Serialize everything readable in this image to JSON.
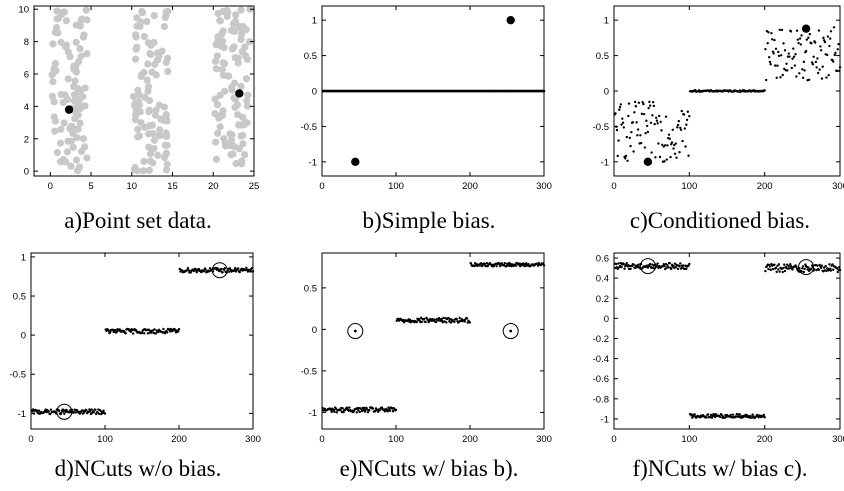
{
  "figure": {
    "captions": [
      "a)Point set data.",
      "b)Simple bias.",
      "c)Conditioned bias.",
      "d)NCuts w/o bias.",
      "e)NCuts w/ bias b).",
      "f)NCuts w/ bias c)."
    ]
  },
  "colors": {
    "point_gray": "#c8c8c8",
    "marker": "#000000",
    "axis": "#000000"
  },
  "chart_data": [
    {
      "id": "a",
      "type": "scatter",
      "title": "",
      "xlabel": "",
      "ylabel": "",
      "xlim": [
        -2,
        25
      ],
      "ylim": [
        -0.3,
        10.2
      ],
      "xticks": [
        0,
        5,
        10,
        15,
        20,
        25
      ],
      "yticks": [
        0,
        2,
        4,
        6,
        8,
        10
      ],
      "clusters": [
        {
          "x_range": [
            0.2,
            4.5
          ],
          "y_range": [
            0,
            10
          ],
          "count": 100,
          "color": "#c8c8c8"
        },
        {
          "x_range": [
            10.2,
            14.5
          ],
          "y_range": [
            0,
            10
          ],
          "count": 100,
          "color": "#c8c8c8"
        },
        {
          "x_range": [
            20.2,
            24.5
          ],
          "y_range": [
            0,
            10
          ],
          "count": 100,
          "color": "#c8c8c8"
        }
      ],
      "highlights": [
        {
          "x": 2.3,
          "y": 3.8
        },
        {
          "x": 23.2,
          "y": 4.8
        }
      ]
    },
    {
      "id": "b",
      "type": "scatter",
      "title": "",
      "xlabel": "",
      "ylabel": "",
      "xlim": [
        0,
        300
      ],
      "ylim": [
        -1.2,
        1.2
      ],
      "xticks": [
        0,
        100,
        200,
        300
      ],
      "yticks": [
        -1,
        -0.5,
        0,
        0.5,
        1
      ],
      "segments": [
        {
          "x_range": [
            1,
            300
          ],
          "y_center": 0,
          "spread": 0.0
        }
      ],
      "highlights": [
        {
          "x": 45,
          "y": -1
        },
        {
          "x": 255,
          "y": 1
        }
      ]
    },
    {
      "id": "c",
      "type": "scatter",
      "title": "",
      "xlabel": "",
      "ylabel": "",
      "xlim": [
        0,
        300
      ],
      "ylim": [
        -1.2,
        1.2
      ],
      "xticks": [
        0,
        100,
        200,
        300
      ],
      "yticks": [
        -1,
        -0.5,
        0,
        0.5,
        1
      ],
      "segments": [
        {
          "x_range": [
            1,
            100
          ],
          "y_min": -1.0,
          "y_max": -0.15
        },
        {
          "x_range": [
            101,
            200
          ],
          "y_center": 0,
          "spread": 0.01
        },
        {
          "x_range": [
            201,
            300
          ],
          "y_min": 0.15,
          "y_max": 0.9
        }
      ],
      "highlights": [
        {
          "x": 45,
          "y": -1
        },
        {
          "x": 255,
          "y": 0.88
        }
      ]
    },
    {
      "id": "d",
      "type": "scatter",
      "title": "",
      "xlabel": "",
      "ylabel": "",
      "xlim": [
        0,
        300
      ],
      "ylim": [
        -1.2,
        1.05
      ],
      "xticks": [
        0,
        100,
        200,
        300
      ],
      "yticks": [
        -1,
        -0.5,
        0,
        0.5,
        1
      ],
      "segments": [
        {
          "x_range": [
            1,
            100
          ],
          "y_center": -0.98,
          "spread": 0.03
        },
        {
          "x_range": [
            101,
            200
          ],
          "y_center": 0.05,
          "spread": 0.03
        },
        {
          "x_range": [
            201,
            300
          ],
          "y_center": 0.83,
          "spread": 0.03
        }
      ],
      "circled": [
        {
          "x": 45,
          "y": -0.98
        },
        {
          "x": 255,
          "y": 0.83
        }
      ]
    },
    {
      "id": "e",
      "type": "scatter",
      "title": "",
      "xlabel": "",
      "ylabel": "",
      "xlim": [
        0,
        300
      ],
      "ylim": [
        -1.2,
        0.92
      ],
      "xticks": [
        0,
        100,
        200,
        300
      ],
      "yticks": [
        -1,
        -0.5,
        0,
        0.5
      ],
      "segments": [
        {
          "x_range": [
            1,
            100
          ],
          "y_center": -0.97,
          "spread": 0.03
        },
        {
          "x_range": [
            101,
            200
          ],
          "y_center": 0.11,
          "spread": 0.03
        },
        {
          "x_range": [
            201,
            300
          ],
          "y_center": 0.78,
          "spread": 0.02
        }
      ],
      "circled": [
        {
          "x": 45,
          "y": -0.02
        },
        {
          "x": 255,
          "y": -0.02
        }
      ],
      "circled_center_dot": true
    },
    {
      "id": "f",
      "type": "scatter",
      "title": "",
      "xlabel": "",
      "ylabel": "",
      "xlim": [
        0,
        300
      ],
      "ylim": [
        -1.1,
        0.65
      ],
      "xticks": [
        0,
        100,
        200,
        300
      ],
      "yticks": [
        -1,
        -0.8,
        -0.6,
        -0.4,
        -0.2,
        0,
        0.2,
        0.4,
        0.6
      ],
      "segments": [
        {
          "x_range": [
            1,
            100
          ],
          "y_center": 0.52,
          "spread": 0.03
        },
        {
          "x_range": [
            101,
            200
          ],
          "y_center": -0.97,
          "spread": 0.02
        },
        {
          "x_range": [
            201,
            300
          ],
          "y_center": 0.5,
          "spread": 0.04
        }
      ],
      "circled": [
        {
          "x": 45,
          "y": 0.52
        },
        {
          "x": 255,
          "y": 0.51
        }
      ]
    }
  ]
}
